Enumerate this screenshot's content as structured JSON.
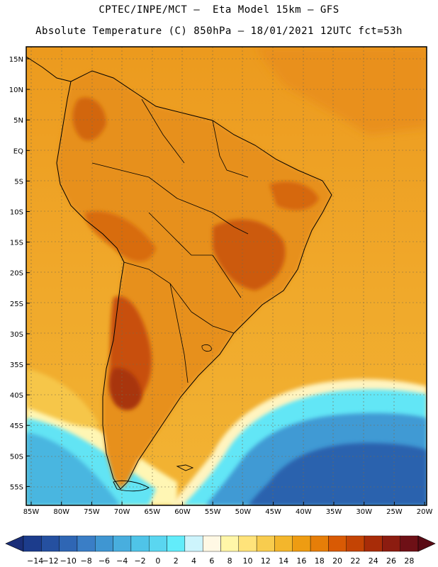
{
  "title_line1": "CPTEC/INPE/MCT –  Eta Model 15km – GFS",
  "title_line2": "Absolute Temperature (C) 850hPa – 18/01/2021 12UTC fct=53h",
  "lat_labels": [
    "15N",
    "10N",
    "5N",
    "EQ",
    "5S",
    "10S",
    "15S",
    "20S",
    "25S",
    "30S",
    "35S",
    "40S",
    "45S",
    "50S",
    "55S"
  ],
  "lon_labels": [
    "85W",
    "80W",
    "75W",
    "70W",
    "65W",
    "60W",
    "55W",
    "50W",
    "45W",
    "40W",
    "35W",
    "30W",
    "25W",
    "20W"
  ],
  "colorbar": {
    "ticks": [
      "−14",
      "−12",
      "−10",
      "−8",
      "−6",
      "−4",
      "−2",
      "0",
      "2",
      "4",
      "6",
      "8",
      "10",
      "12",
      "14",
      "16",
      "18",
      "20",
      "22",
      "24",
      "26",
      "28"
    ],
    "colors": [
      "#1c3c8c",
      "#2550a0",
      "#2f66b4",
      "#3a7ec6",
      "#3f96d2",
      "#48aede",
      "#4fc4e8",
      "#5ad6f0",
      "#62ecfa",
      "#cdf4fc",
      "#fff8e4",
      "#fff6a8",
      "#ffe37a",
      "#f8cc4e",
      "#f3b62c",
      "#ee9c12",
      "#e67e08",
      "#d95a04",
      "#c44404",
      "#a82c08",
      "#8c1c10",
      "#6e1016"
    ]
  },
  "colors": {
    "ocean_warm": "#efa82a",
    "land_hot": "#d86a10",
    "land_warm": "#e48a18",
    "cold_core": "#2a5aa8",
    "cold_mid": "#3c8ed0",
    "cold_edge": "#5ad6f0",
    "transition": "#fff3b0"
  }
}
